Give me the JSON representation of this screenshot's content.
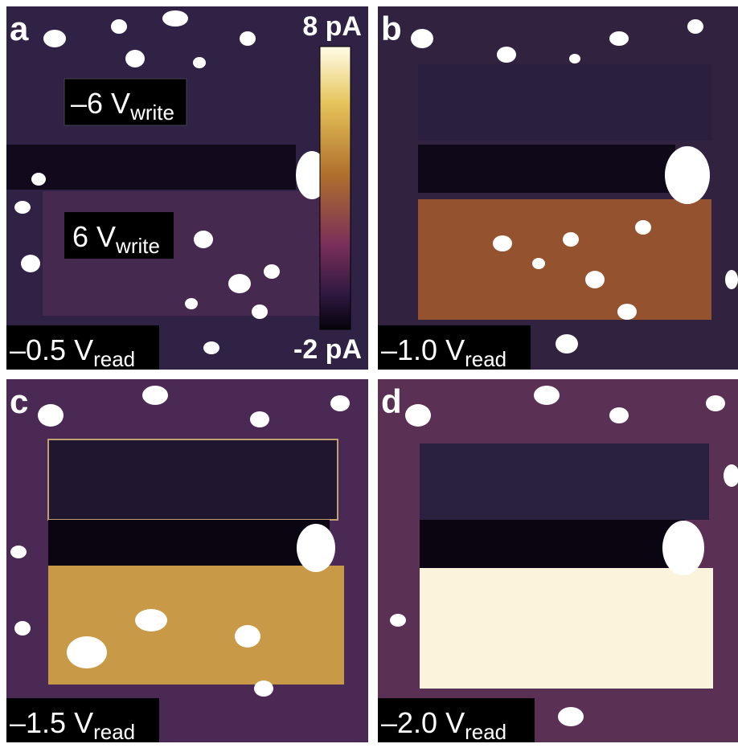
{
  "panels": [
    {
      "label": "a",
      "read": {
        "value": "–0.5 V",
        "subscript": "read"
      }
    },
    {
      "label": "b",
      "read": {
        "value": "–1.0 V",
        "subscript": "read"
      }
    },
    {
      "label": "c",
      "read": {
        "value": "–1.5 V",
        "subscript": "read"
      }
    },
    {
      "label": "d",
      "read": {
        "value": "–2.0 V",
        "subscript": "read"
      }
    }
  ],
  "annotations": {
    "write_negative": {
      "value": "–6 V",
      "subscript": "write"
    },
    "write_positive": {
      "value": "6 V",
      "subscript": "write"
    }
  },
  "colorbar": {
    "max_label": "8 pA",
    "min_label": "-2 pA"
  }
}
